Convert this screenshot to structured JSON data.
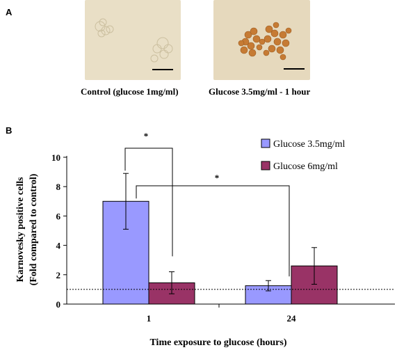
{
  "panel_a": {
    "label": "A",
    "images": [
      {
        "caption": "Control (glucose 1mg/ml)"
      },
      {
        "caption": "Glucose 3.5mg/ml - 1 hour"
      }
    ]
  },
  "panel_b": {
    "label": "B"
  },
  "colors": {
    "glucose_35": "#9999ff",
    "glucose_6": "#993366",
    "micrograph_bg": "#e8dcc0",
    "stained_cell": "#c8782e"
  },
  "chart_data": {
    "type": "bar",
    "xlabel": "Time exposure to glucose (hours)",
    "ylabel_lines": [
      "Karnovesky positive cells",
      "(Fold compared to control)"
    ],
    "categories": [
      "1",
      "24"
    ],
    "ylim": [
      0,
      10
    ],
    "yticks": [
      "0",
      "2",
      "4",
      "6",
      "8",
      "10"
    ],
    "series": [
      {
        "name": "Glucose 3.5mg/ml",
        "values": [
          7.0,
          1.25
        ],
        "errors": [
          1.9,
          0.35
        ]
      },
      {
        "name": "Glucose 6mg/ml",
        "values": [
          1.45,
          2.6
        ],
        "errors": [
          0.75,
          1.25
        ]
      }
    ],
    "reference_line": 1.0,
    "significance_marks": [
      "*",
      "*"
    ],
    "legend_position": "top-right"
  }
}
